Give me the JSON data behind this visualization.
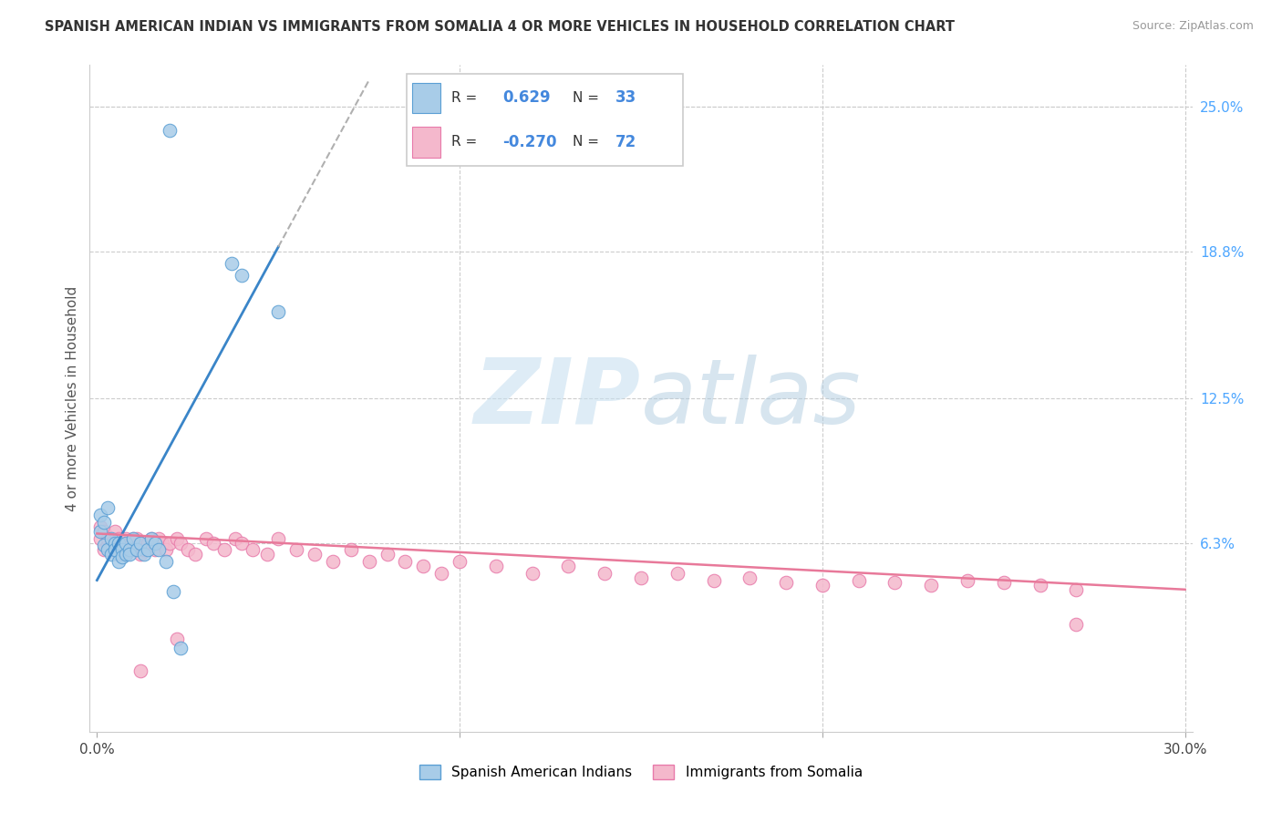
{
  "title": "SPANISH AMERICAN INDIAN VS IMMIGRANTS FROM SOMALIA 4 OR MORE VEHICLES IN HOUSEHOLD CORRELATION CHART",
  "source": "Source: ZipAtlas.com",
  "ylabel_label": "4 or more Vehicles in Household",
  "ytick_labels": [
    "6.3%",
    "12.5%",
    "18.8%",
    "25.0%"
  ],
  "ytick_values": [
    0.063,
    0.125,
    0.188,
    0.25
  ],
  "xtick_values": [
    0.0,
    0.1,
    0.2,
    0.3
  ],
  "xlim": [
    -0.002,
    0.302
  ],
  "ylim": [
    -0.018,
    0.268
  ],
  "legend1_R": "0.629",
  "legend1_N": "33",
  "legend2_R": "-0.270",
  "legend2_N": "72",
  "blue_color": "#a8cce8",
  "pink_color": "#f4b8cc",
  "blue_edge_color": "#5b9fd4",
  "pink_edge_color": "#e87aaa",
  "blue_line_color": "#3a85c8",
  "pink_line_color": "#e8799a",
  "watermark_color": "#ddeef8",
  "blue_scatter_x": [
    0.02,
    0.04,
    0.037,
    0.05,
    0.001,
    0.001,
    0.002,
    0.002,
    0.003,
    0.003,
    0.004,
    0.004,
    0.005,
    0.005,
    0.006,
    0.006,
    0.007,
    0.007,
    0.008,
    0.008,
    0.009,
    0.009,
    0.01,
    0.011,
    0.012,
    0.013,
    0.014,
    0.015,
    0.016,
    0.017,
    0.019,
    0.021,
    0.023
  ],
  "blue_scatter_y": [
    0.24,
    0.178,
    0.183,
    0.162,
    0.068,
    0.075,
    0.062,
    0.072,
    0.06,
    0.078,
    0.065,
    0.058,
    0.063,
    0.06,
    0.055,
    0.063,
    0.06,
    0.057,
    0.058,
    0.063,
    0.06,
    0.058,
    0.065,
    0.06,
    0.063,
    0.058,
    0.06,
    0.065,
    0.063,
    0.06,
    0.055,
    0.042,
    0.018
  ],
  "pink_scatter_x": [
    0.001,
    0.001,
    0.002,
    0.002,
    0.003,
    0.003,
    0.004,
    0.005,
    0.005,
    0.006,
    0.006,
    0.007,
    0.007,
    0.008,
    0.008,
    0.009,
    0.009,
    0.01,
    0.01,
    0.011,
    0.012,
    0.012,
    0.013,
    0.014,
    0.015,
    0.016,
    0.017,
    0.018,
    0.019,
    0.02,
    0.022,
    0.023,
    0.025,
    0.027,
    0.03,
    0.032,
    0.035,
    0.038,
    0.04,
    0.043,
    0.047,
    0.05,
    0.055,
    0.06,
    0.065,
    0.07,
    0.075,
    0.08,
    0.085,
    0.09,
    0.095,
    0.1,
    0.11,
    0.12,
    0.13,
    0.14,
    0.15,
    0.16,
    0.17,
    0.18,
    0.19,
    0.2,
    0.21,
    0.22,
    0.23,
    0.24,
    0.25,
    0.26,
    0.27,
    0.012,
    0.022,
    0.27
  ],
  "pink_scatter_y": [
    0.065,
    0.07,
    0.06,
    0.068,
    0.062,
    0.065,
    0.063,
    0.06,
    0.068,
    0.058,
    0.065,
    0.06,
    0.063,
    0.058,
    0.065,
    0.06,
    0.063,
    0.065,
    0.06,
    0.065,
    0.063,
    0.058,
    0.06,
    0.063,
    0.065,
    0.06,
    0.065,
    0.063,
    0.06,
    0.063,
    0.065,
    0.063,
    0.06,
    0.058,
    0.065,
    0.063,
    0.06,
    0.065,
    0.063,
    0.06,
    0.058,
    0.065,
    0.06,
    0.058,
    0.055,
    0.06,
    0.055,
    0.058,
    0.055,
    0.053,
    0.05,
    0.055,
    0.053,
    0.05,
    0.053,
    0.05,
    0.048,
    0.05,
    0.047,
    0.048,
    0.046,
    0.045,
    0.047,
    0.046,
    0.045,
    0.047,
    0.046,
    0.045,
    0.043,
    0.008,
    0.022,
    0.028
  ]
}
